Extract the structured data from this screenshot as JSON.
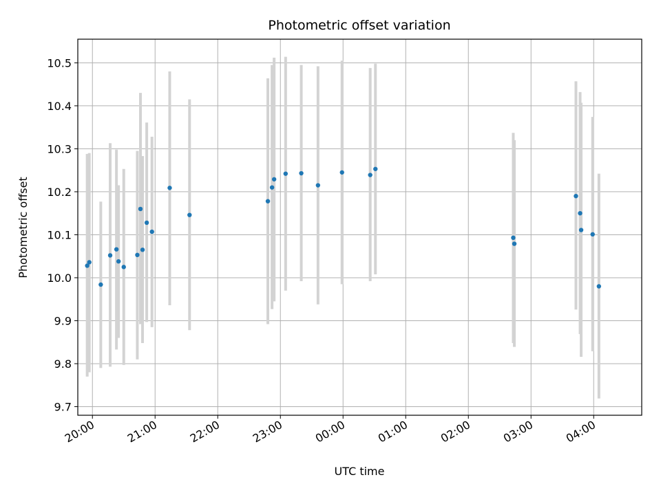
{
  "chart_data": {
    "type": "scatter",
    "title": "Photometric offset variation",
    "xlabel": "UTC time",
    "ylabel": "Photometric offset",
    "x_unit": "hours after 20:00 UTC (ticks show clock time)",
    "xlim_time": [
      "19:46",
      "04:46"
    ],
    "ylim": [
      9.68,
      10.555
    ],
    "grid": true,
    "x_ticks": [
      "20:00",
      "21:00",
      "22:00",
      "23:00",
      "00:00",
      "01:00",
      "02:00",
      "03:00",
      "04:00"
    ],
    "y_ticks": [
      "9.7",
      "9.8",
      "9.9",
      "10.0",
      "10.1",
      "10.2",
      "10.3",
      "10.4",
      "10.5"
    ],
    "colors": {
      "point": "#1f77b4",
      "errorbar": "#d3d3d3",
      "grid": "#b0b0b0"
    },
    "series": [
      {
        "points": [
          {
            "t": "19:55",
            "y": 10.028,
            "lo": 9.77,
            "hi": 10.288
          },
          {
            "t": "19:57",
            "y": 10.036,
            "lo": 9.78,
            "hi": 10.29
          },
          {
            "t": "20:08",
            "y": 9.984,
            "lo": 9.79,
            "hi": 10.177
          },
          {
            "t": "20:17",
            "y": 10.052,
            "lo": 9.793,
            "hi": 10.313
          },
          {
            "t": "20:23",
            "y": 10.066,
            "lo": 9.833,
            "hi": 10.298
          },
          {
            "t": "20:25",
            "y": 10.038,
            "lo": 9.86,
            "hi": 10.215
          },
          {
            "t": "20:30",
            "y": 10.025,
            "lo": 9.797,
            "hi": 10.253
          },
          {
            "t": "20:43",
            "y": 10.053,
            "lo": 9.81,
            "hi": 10.295
          },
          {
            "t": "20:46",
            "y": 10.16,
            "lo": 9.892,
            "hi": 10.43
          },
          {
            "t": "20:48",
            "y": 10.065,
            "lo": 9.848,
            "hi": 10.283
          },
          {
            "t": "20:52",
            "y": 10.128,
            "lo": 9.897,
            "hi": 10.361
          },
          {
            "t": "20:57",
            "y": 10.107,
            "lo": 9.885,
            "hi": 10.328
          },
          {
            "t": "21:14",
            "y": 10.209,
            "lo": 9.936,
            "hi": 10.48
          },
          {
            "t": "21:33",
            "y": 10.146,
            "lo": 9.878,
            "hi": 10.415
          },
          {
            "t": "22:48",
            "y": 10.178,
            "lo": 9.892,
            "hi": 10.464
          },
          {
            "t": "22:52",
            "y": 10.21,
            "lo": 9.927,
            "hi": 10.495
          },
          {
            "t": "22:54",
            "y": 10.229,
            "lo": 9.945,
            "hi": 10.512
          },
          {
            "t": "23:05",
            "y": 10.242,
            "lo": 9.97,
            "hi": 10.514
          },
          {
            "t": "23:20",
            "y": 10.243,
            "lo": 9.992,
            "hi": 10.495
          },
          {
            "t": "23:36",
            "y": 10.215,
            "lo": 9.938,
            "hi": 10.492
          },
          {
            "t": "23:59",
            "y": 10.245,
            "lo": 9.985,
            "hi": 10.505
          },
          {
            "t": "00:26",
            "y": 10.239,
            "lo": 9.992,
            "hi": 10.488
          },
          {
            "t": "00:31",
            "y": 10.253,
            "lo": 10.008,
            "hi": 10.498
          },
          {
            "t": "02:43",
            "y": 10.093,
            "lo": 9.848,
            "hi": 10.337
          },
          {
            "t": "02:44",
            "y": 10.079,
            "lo": 9.839,
            "hi": 10.32
          },
          {
            "t": "03:43",
            "y": 10.19,
            "lo": 9.926,
            "hi": 10.457
          },
          {
            "t": "03:47",
            "y": 10.15,
            "lo": 9.869,
            "hi": 10.432
          },
          {
            "t": "03:48",
            "y": 10.111,
            "lo": 9.816,
            "hi": 10.407
          },
          {
            "t": "03:59",
            "y": 10.101,
            "lo": 9.829,
            "hi": 10.374
          },
          {
            "t": "04:05",
            "y": 9.98,
            "lo": 9.719,
            "hi": 10.242
          }
        ]
      }
    ]
  }
}
